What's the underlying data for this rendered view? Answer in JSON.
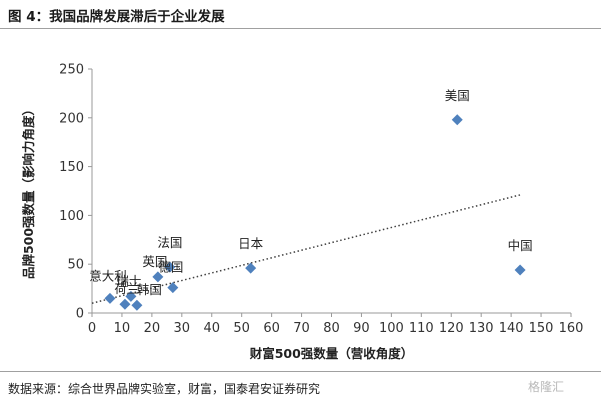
{
  "header": {
    "title": "图 4：我国品牌发展滞后于企业发展"
  },
  "footer": {
    "source": "数据来源：综合世界品牌实验室，财富，国泰君安证券研究",
    "watermark": "格隆汇"
  },
  "colors": {
    "marker": "#4f81bd",
    "trendline": "#404040",
    "axis": "#999999"
  },
  "chart_data": {
    "type": "scatter",
    "title": "",
    "xlabel": "财富500强数量（营收角度）",
    "ylabel": "品牌500强数量（影响力角度）",
    "xlim": [
      0,
      160
    ],
    "ylim": [
      0,
      250
    ],
    "xticks": [
      0,
      10,
      20,
      30,
      40,
      50,
      60,
      70,
      80,
      90,
      100,
      110,
      120,
      130,
      140,
      150,
      160
    ],
    "yticks": [
      0,
      50,
      100,
      150,
      200,
      250
    ],
    "grid": false,
    "points": [
      {
        "label": "美国",
        "x": 122,
        "y": 198
      },
      {
        "label": "中国",
        "x": 143,
        "y": 44
      },
      {
        "label": "日本",
        "x": 53,
        "y": 46
      },
      {
        "label": "法国",
        "x": 26,
        "y": 47
      },
      {
        "label": "英国",
        "x": 22,
        "y": 37
      },
      {
        "label": "德国",
        "x": 27,
        "y": 26
      },
      {
        "label": "瑞士",
        "x": 13,
        "y": 17
      },
      {
        "label": "意大利",
        "x": 6,
        "y": 15
      },
      {
        "label": "荷兰",
        "x": 11,
        "y": 9
      },
      {
        "label": "韩国",
        "x": 15,
        "y": 8
      }
    ],
    "trendline": {
      "type": "linear",
      "style": "dotted",
      "x": [
        0,
        143
      ],
      "y": [
        10,
        121
      ]
    }
  }
}
